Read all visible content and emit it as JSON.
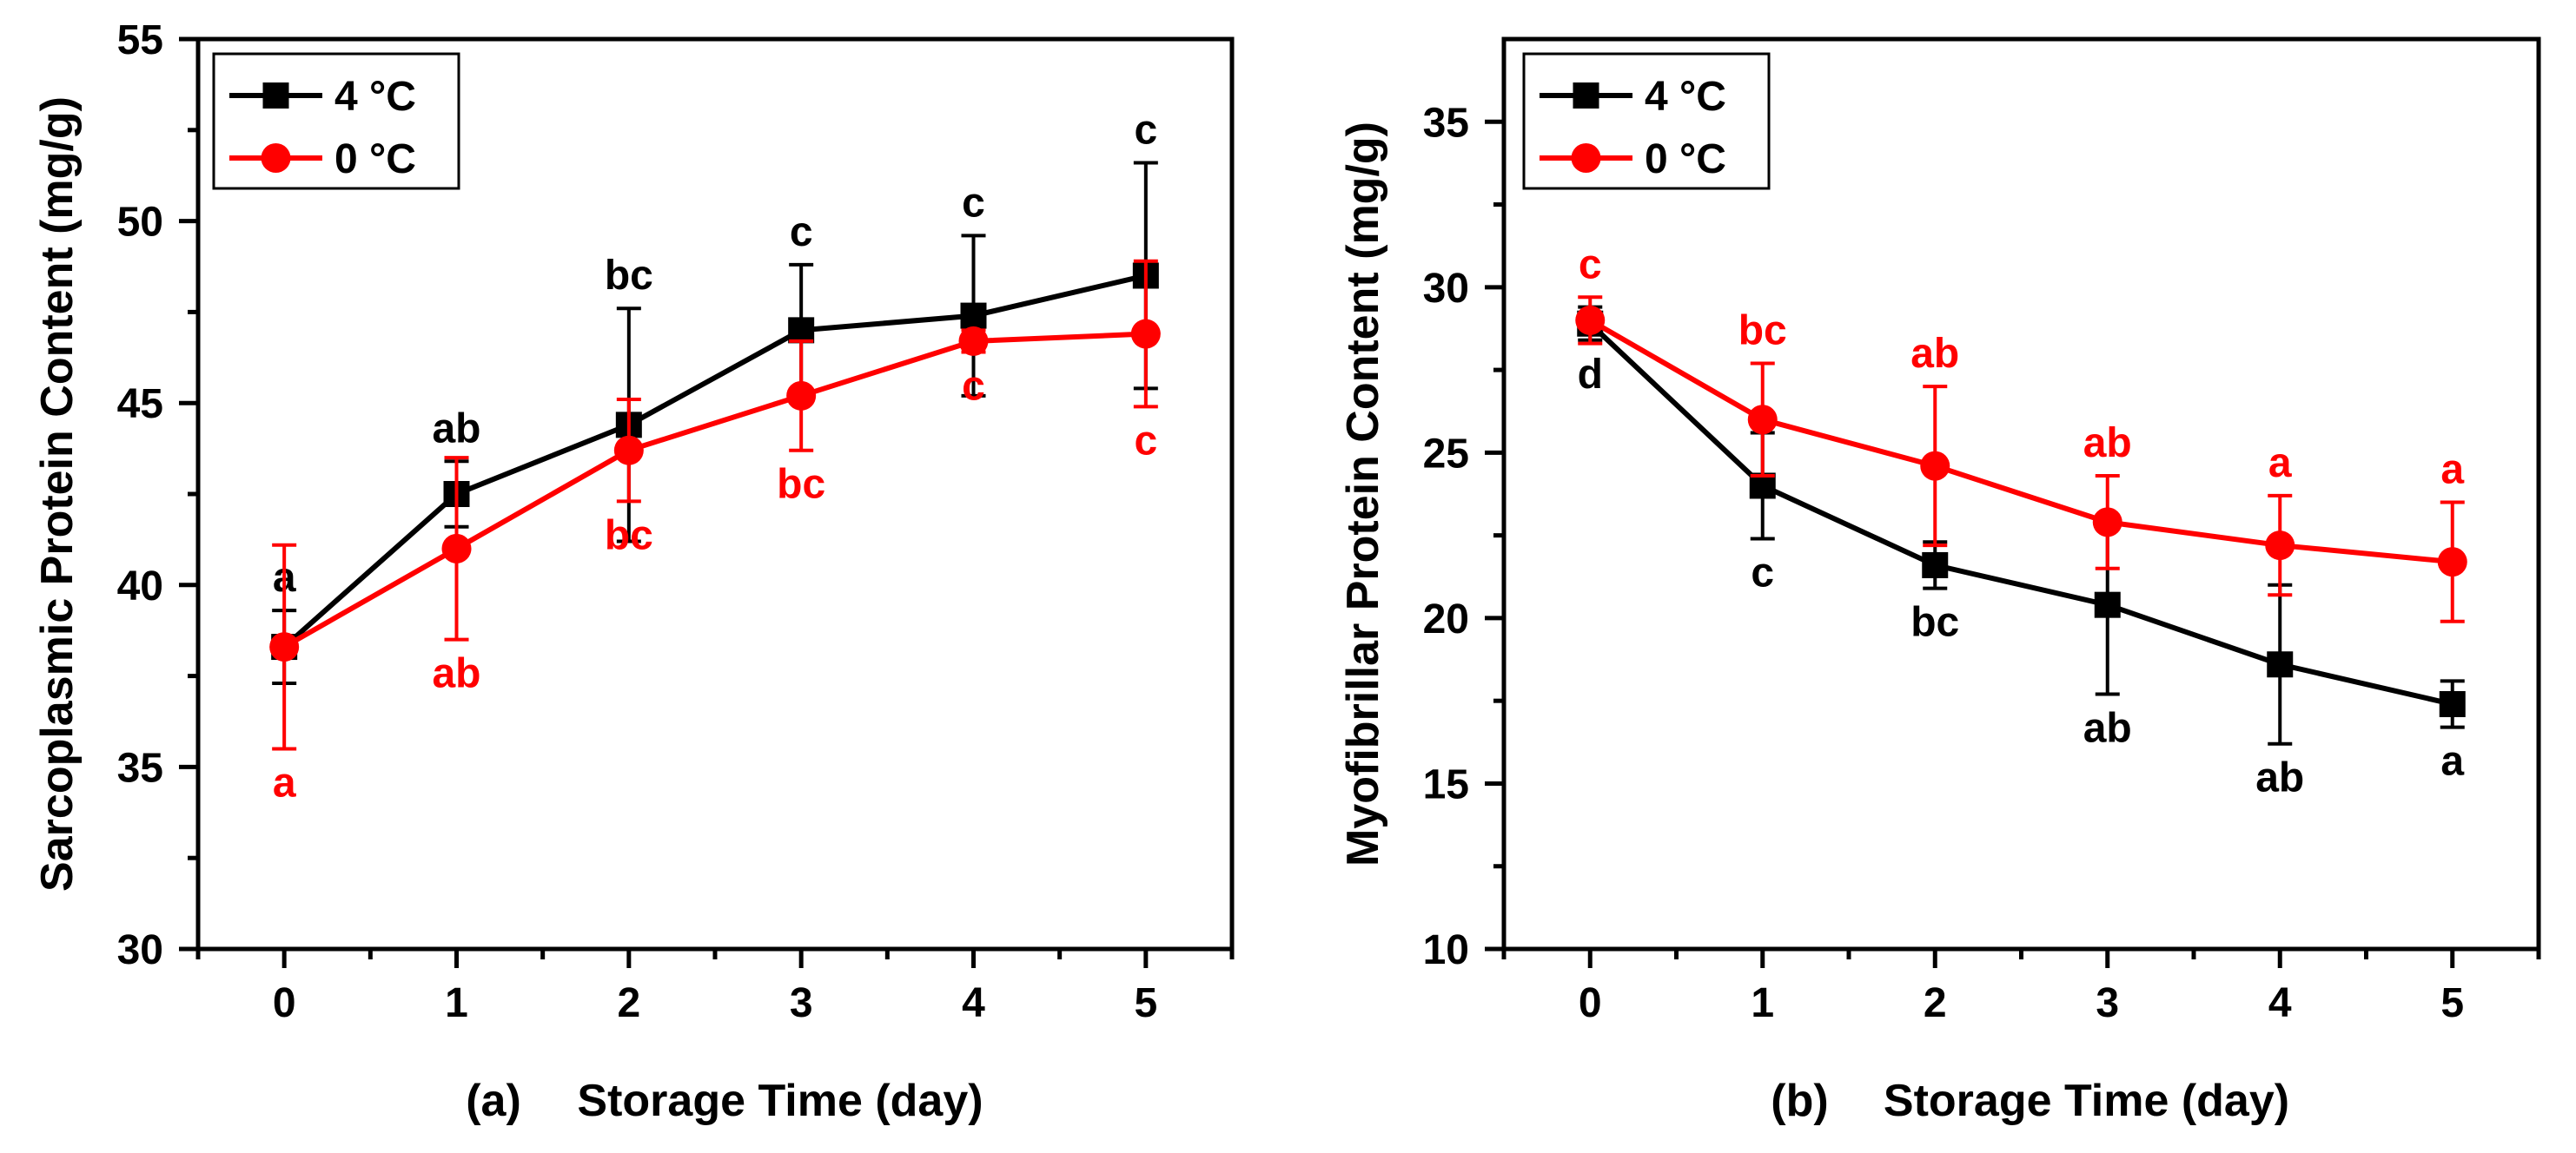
{
  "colors": {
    "s4": "#000000",
    "s0": "#ff0000"
  },
  "chart_data": [
    {
      "type": "line",
      "panel_label": "(a)",
      "xlabel": "Storage Time (day)",
      "ylabel": "Sarcoplasmic Protein Content (mg/g)",
      "xlim": [
        -0.5,
        5.5
      ],
      "ylim": [
        30,
        55
      ],
      "xticks": [
        0,
        1,
        2,
        3,
        4,
        5
      ],
      "yticks": [
        30,
        35,
        40,
        45,
        50,
        55
      ],
      "x": [
        0,
        1,
        2,
        3,
        4,
        5
      ],
      "legend_position": "top-left",
      "series": [
        {
          "name": "4 °C",
          "color_key": "s4",
          "marker": "square",
          "values": [
            38.3,
            42.5,
            44.4,
            47.0,
            47.4,
            48.5
          ],
          "error": [
            1.0,
            0.9,
            3.2,
            1.8,
            2.2,
            3.1
          ],
          "letters": [
            "a",
            "ab",
            "bc",
            "c",
            "c",
            "c"
          ],
          "letter_side": "above"
        },
        {
          "name": "0 °C",
          "color_key": "s0",
          "marker": "circle",
          "values": [
            38.3,
            41.0,
            43.7,
            45.2,
            46.7,
            46.9
          ],
          "error": [
            2.8,
            2.5,
            1.4,
            1.5,
            0.3,
            2.0
          ],
          "letters": [
            "a",
            "ab",
            "bc",
            "bc",
            "c",
            "c"
          ],
          "letter_side": "below"
        }
      ]
    },
    {
      "type": "line",
      "panel_label": "(b)",
      "xlabel": "Storage Time (day)",
      "ylabel": "Myofibrillar Protein Content (mg/g)",
      "xlim": [
        -0.5,
        5.5
      ],
      "ylim": [
        10,
        37.5
      ],
      "xticks": [
        0,
        1,
        2,
        3,
        4,
        5
      ],
      "yticks": [
        10,
        15,
        20,
        25,
        30,
        35
      ],
      "x": [
        0,
        1,
        2,
        3,
        4,
        5
      ],
      "legend_position": "top-left",
      "series": [
        {
          "name": "4 °C",
          "color_key": "s4",
          "marker": "square",
          "values": [
            28.9,
            24.0,
            21.6,
            20.4,
            18.6,
            17.4
          ],
          "error": [
            0.5,
            1.6,
            0.7,
            2.7,
            2.4,
            0.7
          ],
          "letters": [
            "d",
            "c",
            "bc",
            "ab",
            "ab",
            "a"
          ],
          "letter_side": "below"
        },
        {
          "name": "0 °C",
          "color_key": "s0",
          "marker": "circle",
          "values": [
            29.0,
            26.0,
            24.6,
            22.9,
            22.2,
            21.7
          ],
          "error": [
            0.7,
            1.7,
            2.4,
            1.4,
            1.5,
            1.8
          ],
          "letters": [
            "c",
            "bc",
            "ab",
            "ab",
            "a",
            "a"
          ],
          "letter_side": "above"
        }
      ]
    }
  ]
}
